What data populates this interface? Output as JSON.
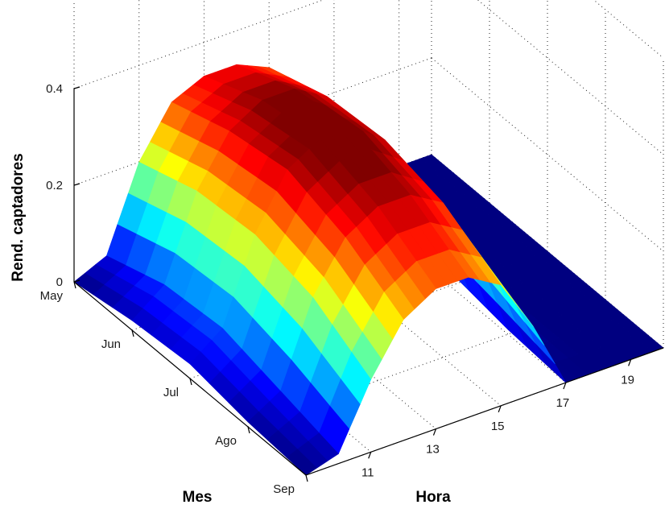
{
  "chart_data": {
    "type": "surface",
    "title": "",
    "xlabel": "Hora",
    "ylabel": "Mes",
    "zlabel": "Rend. captadores",
    "x": [
      9,
      10,
      11,
      12,
      13,
      14,
      15,
      16,
      17,
      18,
      19,
      20
    ],
    "x_ticks": [
      "11",
      "13",
      "15",
      "17",
      "19"
    ],
    "y": [
      "May",
      "Jun",
      "Jul",
      "Ago",
      "Sep"
    ],
    "z_ticks": [
      "0",
      "0.2",
      "0.4"
    ],
    "zlim": [
      0,
      0.4
    ],
    "grid": true,
    "colormap": "jet",
    "values": [
      [
        0.0,
        0.03,
        0.2,
        0.3,
        0.33,
        0.33,
        0.3,
        0.19,
        0.0,
        0.0,
        0.0,
        0.0
      ],
      [
        0.02,
        0.07,
        0.24,
        0.34,
        0.38,
        0.38,
        0.34,
        0.22,
        0.02,
        0.0,
        0.0,
        0.0
      ],
      [
        0.03,
        0.08,
        0.25,
        0.36,
        0.4,
        0.4,
        0.35,
        0.23,
        0.03,
        0.0,
        0.0,
        0.0
      ],
      [
        0.01,
        0.05,
        0.22,
        0.32,
        0.36,
        0.36,
        0.32,
        0.2,
        0.01,
        0.0,
        0.0,
        0.0
      ],
      [
        0.0,
        0.02,
        0.15,
        0.25,
        0.29,
        0.29,
        0.25,
        0.14,
        0.0,
        0.0,
        0.0,
        0.0
      ]
    ]
  }
}
